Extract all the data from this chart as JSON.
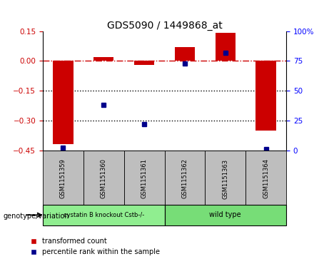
{
  "title": "GDS5090 / 1449868_at",
  "samples": [
    "GSM1151359",
    "GSM1151360",
    "GSM1151361",
    "GSM1151362",
    "GSM1151363",
    "GSM1151364"
  ],
  "red_bars": [
    -0.42,
    0.02,
    -0.02,
    0.07,
    0.14,
    -0.35
  ],
  "blue_dots_pct": [
    0.02,
    0.38,
    0.22,
    0.73,
    0.82,
    0.01
  ],
  "ylim_left": [
    -0.45,
    0.15
  ],
  "left_yticks": [
    -0.45,
    -0.3,
    -0.15,
    0.0,
    0.15
  ],
  "right_yticks": [
    0,
    25,
    50,
    75,
    100
  ],
  "group1_label": "cystatin B knockout Cstb-/-",
  "group2_label": "wild type",
  "group1_indices": [
    0,
    1,
    2
  ],
  "group2_indices": [
    3,
    4,
    5
  ],
  "group1_color": "#90EE90",
  "group2_color": "#77DD77",
  "sample_box_color": "#BEBEBE",
  "bar_color": "#CC0000",
  "dot_color": "#00008B",
  "title_fontsize": 10,
  "legend_label_red": "transformed count",
  "legend_label_blue": "percentile rank within the sample",
  "genotype_label": "genotype/variation"
}
